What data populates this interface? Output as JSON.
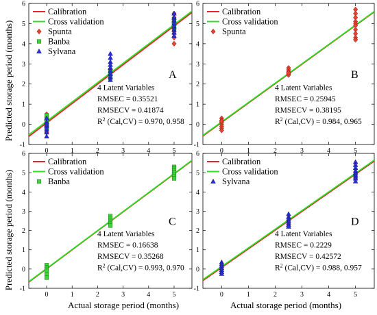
{
  "figure": {
    "ylabel": "Predicted storage period (months)",
    "xlabel": "Actual storage period (months)"
  },
  "colors": {
    "calibration": "#e4252b",
    "cross_validation": "#2de020",
    "spunta": "#e8412f",
    "banba": "#3fd43a",
    "sylvana": "#2b2fd8"
  },
  "chart_data": [
    {
      "type": "scatter",
      "panel": "A",
      "xlim": [
        -0.7,
        5.7
      ],
      "ylim": [
        -1,
        6
      ],
      "xticks": [
        0,
        1,
        2,
        3,
        4,
        5
      ],
      "yticks": [
        -1,
        0,
        1,
        2,
        3,
        4,
        5,
        6
      ],
      "legend_position": "top-left",
      "legend": [
        "Calibration",
        "Cross validation",
        "Spunta",
        "Banba",
        "Sylvana"
      ],
      "lines": [
        {
          "name": "Calibration",
          "x": [
            -0.7,
            5.7
          ],
          "y": [
            -0.6,
            5.55
          ]
        },
        {
          "name": "Cross validation",
          "x": [
            -0.7,
            5.7
          ],
          "y": [
            -0.52,
            5.62
          ]
        }
      ],
      "series": [
        {
          "name": "Spunta",
          "marker": "diamond",
          "x": [
            0,
            0,
            0,
            0,
            0,
            0,
            0,
            0,
            5,
            5,
            5,
            5,
            5,
            5,
            5,
            5,
            5,
            5,
            5,
            5
          ],
          "y": [
            0.5,
            0.35,
            0.2,
            0.05,
            -0.1,
            -0.25,
            -0.4,
            0.15,
            5.5,
            5.3,
            5.1,
            4.9,
            4.7,
            4.5,
            4.3,
            4.0,
            5.0,
            4.8,
            5.2,
            4.6
          ]
        },
        {
          "name": "Banba",
          "marker": "square",
          "x": [
            0,
            0,
            0,
            0,
            0,
            0,
            2.5,
            2.5,
            2.5,
            2.5,
            2.5,
            2.5,
            2.5,
            5,
            5,
            5,
            5,
            5,
            5,
            5
          ],
          "y": [
            0.45,
            0.3,
            0.1,
            -0.05,
            -0.2,
            0.2,
            2.4,
            2.5,
            2.6,
            2.7,
            2.3,
            2.55,
            2.45,
            5.2,
            5.1,
            5.0,
            4.9,
            4.8,
            4.75,
            5.05
          ]
        },
        {
          "name": "Sylvana",
          "marker": "triangle",
          "x": [
            0,
            0,
            0,
            0,
            0,
            0,
            0,
            2.5,
            2.5,
            2.5,
            2.5,
            2.5,
            2.5,
            2.5,
            2.5,
            2.5,
            5,
            5,
            5,
            5,
            5,
            5,
            5,
            5
          ],
          "y": [
            0.3,
            0.1,
            -0.1,
            -0.25,
            -0.4,
            -0.6,
            0.0,
            3.5,
            3.3,
            3.1,
            2.95,
            2.8,
            2.65,
            2.5,
            2.35,
            2.2,
            5.5,
            5.3,
            5.15,
            5.0,
            4.85,
            4.7,
            4.55,
            4.4
          ]
        }
      ],
      "annotations": {
        "latent": "4 Latent Variables",
        "rmsec": "RMSEC = 0.35521",
        "rmsecv": "RMSECV = 0.41874",
        "r2_label": "R",
        "r2_sup": "2",
        "r2_rest": " (Cal,CV) = 0.970, 0.958"
      }
    },
    {
      "type": "scatter",
      "panel": "B",
      "xlim": [
        -0.7,
        5.7
      ],
      "ylim": [
        -1,
        6
      ],
      "xticks": [
        0,
        1,
        2,
        3,
        4,
        5
      ],
      "yticks": [
        -1,
        0,
        1,
        2,
        3,
        4,
        5,
        6
      ],
      "legend_position": "top-left",
      "legend": [
        "Calibration",
        "Cross validation",
        "Spunta"
      ],
      "lines": [
        {
          "name": "Calibration",
          "x": [
            -0.7,
            5.7
          ],
          "y": [
            -0.58,
            5.58
          ]
        },
        {
          "name": "Cross validation",
          "x": [
            -0.7,
            5.7
          ],
          "y": [
            -0.55,
            5.6
          ]
        }
      ],
      "series": [
        {
          "name": "Spunta",
          "marker": "diamond",
          "x": [
            0,
            0,
            0,
            0,
            0,
            0,
            0,
            0,
            2.5,
            2.5,
            2.5,
            2.5,
            2.5,
            2.5,
            5,
            5,
            5,
            5,
            5,
            5,
            5,
            5,
            5,
            5
          ],
          "y": [
            0.3,
            0.2,
            0.1,
            0.0,
            -0.1,
            -0.2,
            -0.3,
            0.15,
            2.8,
            2.7,
            2.6,
            2.5,
            2.45,
            2.55,
            5.7,
            5.5,
            5.3,
            5.1,
            5.0,
            4.9,
            4.7,
            4.5,
            4.3,
            4.2
          ]
        }
      ],
      "annotations": {
        "latent": "4 Latent Variables",
        "rmsec": "RMSEC = 0.25945",
        "rmsecv": "RMSECV = 0.38195",
        "r2_label": "R",
        "r2_sup": "2",
        "r2_rest": " (Cal,CV) = 0.984, 0.965"
      }
    },
    {
      "type": "scatter",
      "panel": "C",
      "xlim": [
        -0.7,
        5.7
      ],
      "ylim": [
        -1,
        6
      ],
      "xticks": [
        0,
        1,
        2,
        3,
        4,
        5
      ],
      "yticks": [
        -1,
        0,
        1,
        2,
        3,
        4,
        5,
        6
      ],
      "legend_position": "top-left",
      "legend": [
        "Calibration",
        "Cross validation",
        "Banba"
      ],
      "lines": [
        {
          "name": "Calibration",
          "x": [
            -0.7,
            5.7
          ],
          "y": [
            -0.68,
            5.62
          ]
        },
        {
          "name": "Cross validation",
          "x": [
            -0.7,
            5.7
          ],
          "y": [
            -0.66,
            5.64
          ]
        }
      ],
      "series": [
        {
          "name": "Banba",
          "marker": "square",
          "x": [
            0,
            0,
            0,
            0,
            0,
            0,
            2.5,
            2.5,
            2.5,
            2.5,
            2.5,
            2.5,
            5,
            5,
            5,
            5,
            5,
            5,
            5
          ],
          "y": [
            0.2,
            0.1,
            0.0,
            -0.1,
            -0.3,
            -0.45,
            2.75,
            2.65,
            2.55,
            2.45,
            2.35,
            2.25,
            5.3,
            5.2,
            5.1,
            5.0,
            4.9,
            4.8,
            4.7
          ]
        }
      ],
      "annotations": {
        "latent": "4 Latent Variables",
        "rmsec": "RMSEC = 0.16638",
        "rmsecv": "RMSECV = 0.35268",
        "r2_label": "R",
        "r2_sup": "2",
        "r2_rest": " (Cal,CV) = 0.993, 0.970"
      }
    },
    {
      "type": "scatter",
      "panel": "D",
      "xlim": [
        -0.7,
        5.7
      ],
      "ylim": [
        -1,
        6
      ],
      "xticks": [
        0,
        1,
        2,
        3,
        4,
        5
      ],
      "yticks": [
        -1,
        0,
        1,
        2,
        3,
        4,
        5,
        6
      ],
      "legend_position": "top-left",
      "legend": [
        "Calibration",
        "Cross validation",
        "Sylvana"
      ],
      "lines": [
        {
          "name": "Calibration",
          "x": [
            -0.7,
            5.7
          ],
          "y": [
            -0.6,
            5.6
          ]
        },
        {
          "name": "Cross validation",
          "x": [
            -0.7,
            5.7
          ],
          "y": [
            -0.55,
            5.65
          ]
        }
      ],
      "series": [
        {
          "name": "Sylvana",
          "marker": "triangle",
          "x": [
            0,
            0,
            0,
            0,
            0,
            0,
            0,
            2.5,
            2.5,
            2.5,
            2.5,
            2.5,
            2.5,
            2.5,
            5,
            5,
            5,
            5,
            5,
            5,
            5,
            5,
            5
          ],
          "y": [
            0.35,
            0.25,
            0.15,
            0.05,
            -0.05,
            -0.15,
            -0.25,
            2.85,
            2.7,
            2.6,
            2.5,
            2.4,
            2.3,
            2.2,
            5.55,
            5.4,
            5.25,
            5.1,
            5.0,
            4.9,
            4.8,
            4.7,
            4.55
          ]
        }
      ],
      "annotations": {
        "latent": "4 Latent Variables",
        "rmsec": "RMSEC = 0.2229",
        "rmsecv": "RMSECV = 0.42572",
        "r2_label": "R",
        "r2_sup": "2",
        "r2_rest": " (Cal,CV) = 0.988, 0.957"
      }
    }
  ]
}
